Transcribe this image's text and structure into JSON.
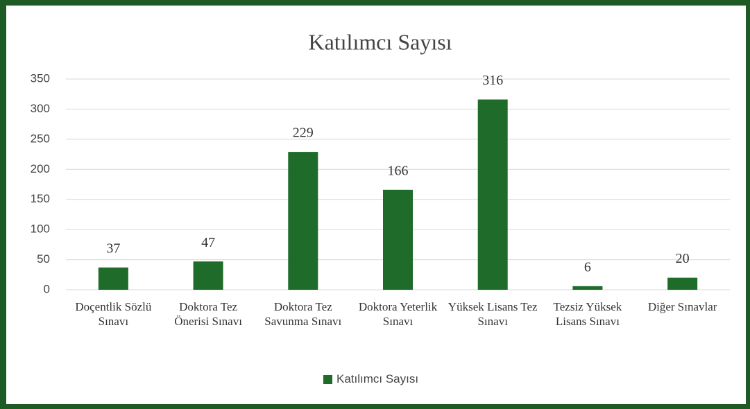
{
  "chart_data": {
    "type": "bar",
    "title": "Katılımcı Sayısı",
    "categories": [
      "Doçentlik Sözlü Sınavı",
      "Doktora Tez Önerisi Sınavı",
      "Doktora Tez Savunma Sınavı",
      "Doktora Yeterlik Sınavı",
      "Yüksek Lisans Tez Sınavı",
      "Tezsiz Yüksek Lisans Sınavı",
      "Diğer Sınavlar"
    ],
    "series": [
      {
        "name": "Katılımcı Sayısı",
        "color": "#1e6b2a",
        "values": [
          37,
          47,
          229,
          166,
          316,
          6,
          20
        ]
      }
    ],
    "ylim": [
      0,
      350
    ],
    "yticks": [
      0,
      50,
      100,
      150,
      200,
      250,
      300,
      350
    ],
    "grid": true,
    "legend": "bottom"
  }
}
